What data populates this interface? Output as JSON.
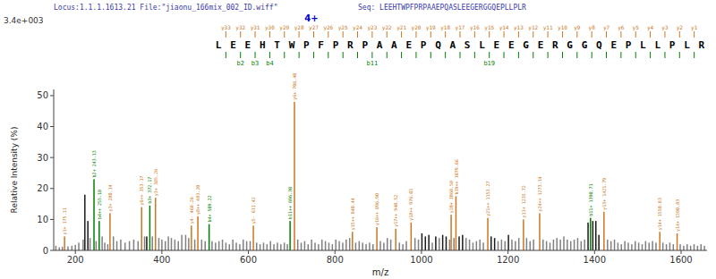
{
  "chart_data": {
    "type": "bar",
    "title": "Locus:1.1.1.1613.21 File:\"jiaonu_166mix_002_ID.wiff\"",
    "subtitle": "Seq: LEEHTWPFPRPAAEPQASLEEGERGGQEPLLPLR",
    "header_color": "#3a3aaa",
    "xlabel": "m/z",
    "ylabel": "Relative Intensity (%)",
    "intensity_label": "3.4e+003",
    "charge_label": {
      "text": "4+",
      "color": "#0000cc"
    },
    "sequence": [
      "L",
      "E",
      "E",
      "H",
      "T",
      "W",
      "P",
      "F",
      "P",
      "R",
      "P",
      "A",
      "A",
      "E",
      "P",
      "Q",
      "A",
      "S",
      "L",
      "E",
      "E",
      "G",
      "E",
      "R",
      "G",
      "G",
      "Q",
      "E",
      "P",
      "L",
      "L",
      "P",
      "L",
      "R"
    ],
    "b_ions": {
      "color": "#008000",
      "labels": [
        {
          "after": 1,
          "text": "b2"
        },
        {
          "after": 2,
          "text": "b3"
        },
        {
          "after": 3,
          "text": "b4"
        },
        {
          "after": 10,
          "text": "b11"
        },
        {
          "after": 18,
          "text": "b19"
        }
      ]
    },
    "y_ions": {
      "color": "#cc7722",
      "labels": [
        "y33",
        "y32",
        "y31",
        "y30",
        "y29",
        "y28",
        "y27",
        "y26",
        "y25",
        "y24",
        "y23",
        "y22",
        "y21",
        "y20",
        "y19",
        "y18",
        "y17",
        "y16",
        "y15",
        "y14",
        "y13",
        "y12",
        "y11",
        "y10",
        "y9",
        "y8",
        "y7",
        "y6",
        "y5",
        "y4",
        "y3",
        "y2",
        "y1"
      ]
    },
    "xlim": [
      150,
      1660
    ],
    "ylim": [
      0,
      52
    ],
    "xticks": [
      200,
      400,
      600,
      800,
      1000,
      1200,
      1400,
      1600
    ],
    "yticks": [
      0,
      10,
      20,
      30,
      40,
      50
    ],
    "grid": false,
    "x": [
      155,
      163,
      170,
      175.11,
      183,
      192,
      200,
      208,
      218,
      222,
      229,
      234,
      243.13,
      248,
      255.18,
      262,
      268,
      275,
      280.14,
      288,
      296,
      305,
      315,
      325,
      335,
      345,
      353.17,
      360,
      365,
      372.17,
      378,
      385.26,
      393,
      400,
      408,
      415,
      422,
      430,
      438,
      446,
      455,
      462,
      468.26,
      476,
      483.2,
      492,
      500,
      509.22,
      516,
      524,
      532,
      540,
      548,
      556,
      564,
      572,
      580,
      588,
      596,
      604,
      611.42,
      619,
      627,
      635,
      643,
      651,
      659,
      667,
      675,
      683,
      690,
      696.3,
      706.4,
      714,
      722,
      730,
      738,
      746,
      754,
      762,
      770,
      778,
      786,
      794,
      802,
      810,
      818,
      826,
      834,
      840.44,
      848,
      856,
      864,
      872,
      880,
      888,
      896.9,
      905,
      913,
      921,
      929,
      940.52,
      949,
      957,
      965,
      976.01,
      985,
      993,
      1001,
      1009,
      1017,
      1025,
      1033,
      1041,
      1049,
      1057,
      1065,
      1068.58,
      1075,
      1079.66,
      1087,
      1095,
      1103,
      1111,
      1119,
      1127,
      1135,
      1143,
      1153.27,
      1161,
      1169,
      1177,
      1185,
      1193,
      1201,
      1209,
      1217,
      1225,
      1235.72,
      1243,
      1251,
      1259,
      1273.14,
      1281,
      1289,
      1297,
      1305,
      1313,
      1321,
      1329,
      1337,
      1345,
      1353,
      1361,
      1369,
      1377,
      1385,
      1390.71,
      1396,
      1403,
      1410,
      1421.79,
      1430,
      1438,
      1446,
      1454,
      1462,
      1470,
      1478,
      1486,
      1494,
      1502,
      1510,
      1518,
      1526,
      1534,
      1542,
      1550.83,
      1558,
      1566,
      1574,
      1582,
      1590.83,
      1598,
      1606,
      1614,
      1622,
      1630,
      1638,
      1646,
      1654
    ],
    "values": [
      1.5,
      1.0,
      1.2,
      4.5,
      1.3,
      1.5,
      1.8,
      2.5,
      3.5,
      18.0,
      9.5,
      4.0,
      23.0,
      3.0,
      9.5,
      4.5,
      2.5,
      2.0,
      12.0,
      4.5,
      3.0,
      3.5,
      2.5,
      3.0,
      3.5,
      3.0,
      14.0,
      4.5,
      4.5,
      14.5,
      4.5,
      17.0,
      4.0,
      3.5,
      3.0,
      4.5,
      4.0,
      3.5,
      3.0,
      5.0,
      5.0,
      4.0,
      8.0,
      3.5,
      11.0,
      3.5,
      3.0,
      8.5,
      3.0,
      2.5,
      3.0,
      3.5,
      2.5,
      2.0,
      3.5,
      2.5,
      2.0,
      3.5,
      3.0,
      3.0,
      8.0,
      2.5,
      2.0,
      2.5,
      2.0,
      3.0,
      2.0,
      2.5,
      2.0,
      2.5,
      2.0,
      9.5,
      48.0,
      3.5,
      2.5,
      3.0,
      2.0,
      3.5,
      2.5,
      2.0,
      3.5,
      3.0,
      2.5,
      2.0,
      3.5,
      3.0,
      2.5,
      3.5,
      4.0,
      6.0,
      2.5,
      3.0,
      2.5,
      2.0,
      2.5,
      2.0,
      7.5,
      3.0,
      2.5,
      4.0,
      3.5,
      7.0,
      2.5,
      2.0,
      3.0,
      9.0,
      4.0,
      3.5,
      5.5,
      4.5,
      5.0,
      2.5,
      4.5,
      4.0,
      5.0,
      4.5,
      3.5,
      11.5,
      4.0,
      17.5,
      4.5,
      5.0,
      4.0,
      3.5,
      2.5,
      3.0,
      3.5,
      2.5,
      10.5,
      4.5,
      4.0,
      3.0,
      3.5,
      3.0,
      5.0,
      3.5,
      3.0,
      4.0,
      10.0,
      4.0,
      3.0,
      3.5,
      12.0,
      3.5,
      3.0,
      2.5,
      3.5,
      4.0,
      3.5,
      4.5,
      3.5,
      3.0,
      3.5,
      4.0,
      3.0,
      3.5,
      9.0,
      10.5,
      9.5,
      9.5,
      5.0,
      12.5,
      3.5,
      3.0,
      3.5,
      2.5,
      2.0,
      3.0,
      2.5,
      2.0,
      3.0,
      2.5,
      2.0,
      3.0,
      2.5,
      3.0,
      2.5,
      6.0,
      2.5,
      2.0,
      2.5,
      2.0,
      5.5,
      2.0,
      1.5,
      2.0,
      1.5,
      2.0,
      1.5,
      2.0,
      1.5
    ],
    "colors": [
      "#808080",
      "#808080",
      "#808080",
      "#cc7722",
      "#808080",
      "#808080",
      "#808080",
      "#808080",
      "#808080",
      "#1a1a1a",
      "#1a1a1a",
      "#808080",
      "#008000",
      "#808080",
      "#008000",
      "#808080",
      "#808080",
      "#808080",
      "#cc7722",
      "#808080",
      "#808080",
      "#808080",
      "#808080",
      "#808080",
      "#808080",
      "#808080",
      "#cc7722",
      "#808080",
      "#1a1a1a",
      "#008000",
      "#808080",
      "#cc7722",
      "#808080",
      "#808080",
      "#808080",
      "#808080",
      "#808080",
      "#808080",
      "#808080",
      "#808080",
      "#808080",
      "#808080",
      "#cc7722",
      "#808080",
      "#cc7722",
      "#808080",
      "#808080",
      "#008000",
      "#808080",
      "#808080",
      "#808080",
      "#808080",
      "#808080",
      "#808080",
      "#808080",
      "#808080",
      "#808080",
      "#808080",
      "#808080",
      "#808080",
      "#cc7722",
      "#808080",
      "#808080",
      "#808080",
      "#808080",
      "#808080",
      "#808080",
      "#808080",
      "#808080",
      "#808080",
      "#808080",
      "#008000",
      "#cc7722",
      "#808080",
      "#808080",
      "#808080",
      "#808080",
      "#808080",
      "#808080",
      "#808080",
      "#808080",
      "#808080",
      "#808080",
      "#808080",
      "#808080",
      "#808080",
      "#808080",
      "#808080",
      "#808080",
      "#cc7722",
      "#808080",
      "#808080",
      "#808080",
      "#808080",
      "#808080",
      "#808080",
      "#cc7722",
      "#808080",
      "#808080",
      "#808080",
      "#808080",
      "#cc7722",
      "#808080",
      "#808080",
      "#808080",
      "#cc7722",
      "#808080",
      "#808080",
      "#1a1a1a",
      "#1a1a1a",
      "#1a1a1a",
      "#808080",
      "#1a1a1a",
      "#808080",
      "#1a1a1a",
      "#1a1a1a",
      "#808080",
      "#cc7722",
      "#808080",
      "#cc7722",
      "#1a1a1a",
      "#1a1a1a",
      "#808080",
      "#808080",
      "#808080",
      "#808080",
      "#808080",
      "#808080",
      "#cc7722",
      "#1a1a1a",
      "#1a1a1a",
      "#808080",
      "#808080",
      "#808080",
      "#1a1a1a",
      "#808080",
      "#808080",
      "#808080",
      "#cc7722",
      "#808080",
      "#808080",
      "#808080",
      "#cc7722",
      "#808080",
      "#808080",
      "#808080",
      "#808080",
      "#808080",
      "#808080",
      "#808080",
      "#808080",
      "#808080",
      "#808080",
      "#808080",
      "#808080",
      "#808080",
      "#1a1a1a",
      "#008000",
      "#1a1a1a",
      "#1a1a1a",
      "#1a1a1a",
      "#cc7722",
      "#808080",
      "#808080",
      "#808080",
      "#808080",
      "#808080",
      "#808080",
      "#808080",
      "#808080",
      "#808080",
      "#808080",
      "#808080",
      "#808080",
      "#808080",
      "#808080",
      "#808080",
      "#cc7722",
      "#808080",
      "#808080",
      "#808080",
      "#808080",
      "#cc7722",
      "#808080",
      "#808080",
      "#808080",
      "#808080",
      "#808080",
      "#808080",
      "#808080",
      "#808080"
    ],
    "peak_labels": [
      {
        "x": 175.11,
        "y": 4.5,
        "text": "y1+ 175.11",
        "color": "#cc7722"
      },
      {
        "x": 243.13,
        "y": 23.0,
        "text": "b2+ 243.13",
        "color": "#008000"
      },
      {
        "x": 255.18,
        "y": 9.5,
        "text": "b4++ 255.18",
        "color": "#008000"
      },
      {
        "x": 280.14,
        "y": 12.0,
        "text": "y3+ 280.14",
        "color": "#cc7722"
      },
      {
        "x": 353.17,
        "y": 14.0,
        "text": "y6++ 353.17",
        "color": "#cc7722"
      },
      {
        "x": 372.17,
        "y": 14.5,
        "text": "b3+ 372.17",
        "color": "#008000"
      },
      {
        "x": 385.26,
        "y": 17.0,
        "text": "y3+ 385.26",
        "color": "#cc7722"
      },
      {
        "x": 468.26,
        "y": 8.0,
        "text": "y4- 468.26",
        "color": "#cc7722"
      },
      {
        "x": 483.2,
        "y": 11.0,
        "text": "y8++ 483.20",
        "color": "#cc7722"
      },
      {
        "x": 509.22,
        "y": 8.5,
        "text": "b4+ 509.22",
        "color": "#008000"
      },
      {
        "x": 611.42,
        "y": 8.0,
        "text": "y5- 611.42",
        "color": "#cc7722"
      },
      {
        "x": 696.3,
        "y": 9.5,
        "text": "b11++ 696.30",
        "color": "#008000"
      },
      {
        "x": 706.4,
        "y": 48.0,
        "text": "y6+ 706.40",
        "color": "#cc7722"
      },
      {
        "x": 840.44,
        "y": 6.0,
        "text": "y15++ 840.44",
        "color": "#cc7722"
      },
      {
        "x": 896.9,
        "y": 7.5,
        "text": "y16++ 896.90",
        "color": "#cc7722"
      },
      {
        "x": 940.52,
        "y": 7.0,
        "text": "y17++ 940.52",
        "color": "#cc7722"
      },
      {
        "x": 976.01,
        "y": 9.0,
        "text": "y18++ 976.01",
        "color": "#cc7722"
      },
      {
        "x": 1068.58,
        "y": 11.5,
        "text": "y20+ 1068.58",
        "color": "#cc7722"
      },
      {
        "x": 1079.66,
        "y": 17.5,
        "text": "b19++ 1079.66",
        "color": "#cc7722"
      },
      {
        "x": 1153.27,
        "y": 10.5,
        "text": "y21++ 1153.27",
        "color": "#cc7722"
      },
      {
        "x": 1235.72,
        "y": 10.0,
        "text": "y11+ 1235.72",
        "color": "#cc7722"
      },
      {
        "x": 1273.14,
        "y": 12.0,
        "text": "y24++ 1273.14",
        "color": "#cc7722"
      },
      {
        "x": 1390.71,
        "y": 10.5,
        "text": "b11+ 1390.71",
        "color": "#008000"
      },
      {
        "x": 1421.79,
        "y": 12.5,
        "text": "y13+ 1421.79",
        "color": "#cc7722"
      },
      {
        "x": 1550.83,
        "y": 6.0,
        "text": "y14+ 1550.83",
        "color": "#cc7722"
      },
      {
        "x": 1590.83,
        "y": 5.5,
        "text": "y14+ 1590.83",
        "color": "#cc7722"
      }
    ]
  }
}
